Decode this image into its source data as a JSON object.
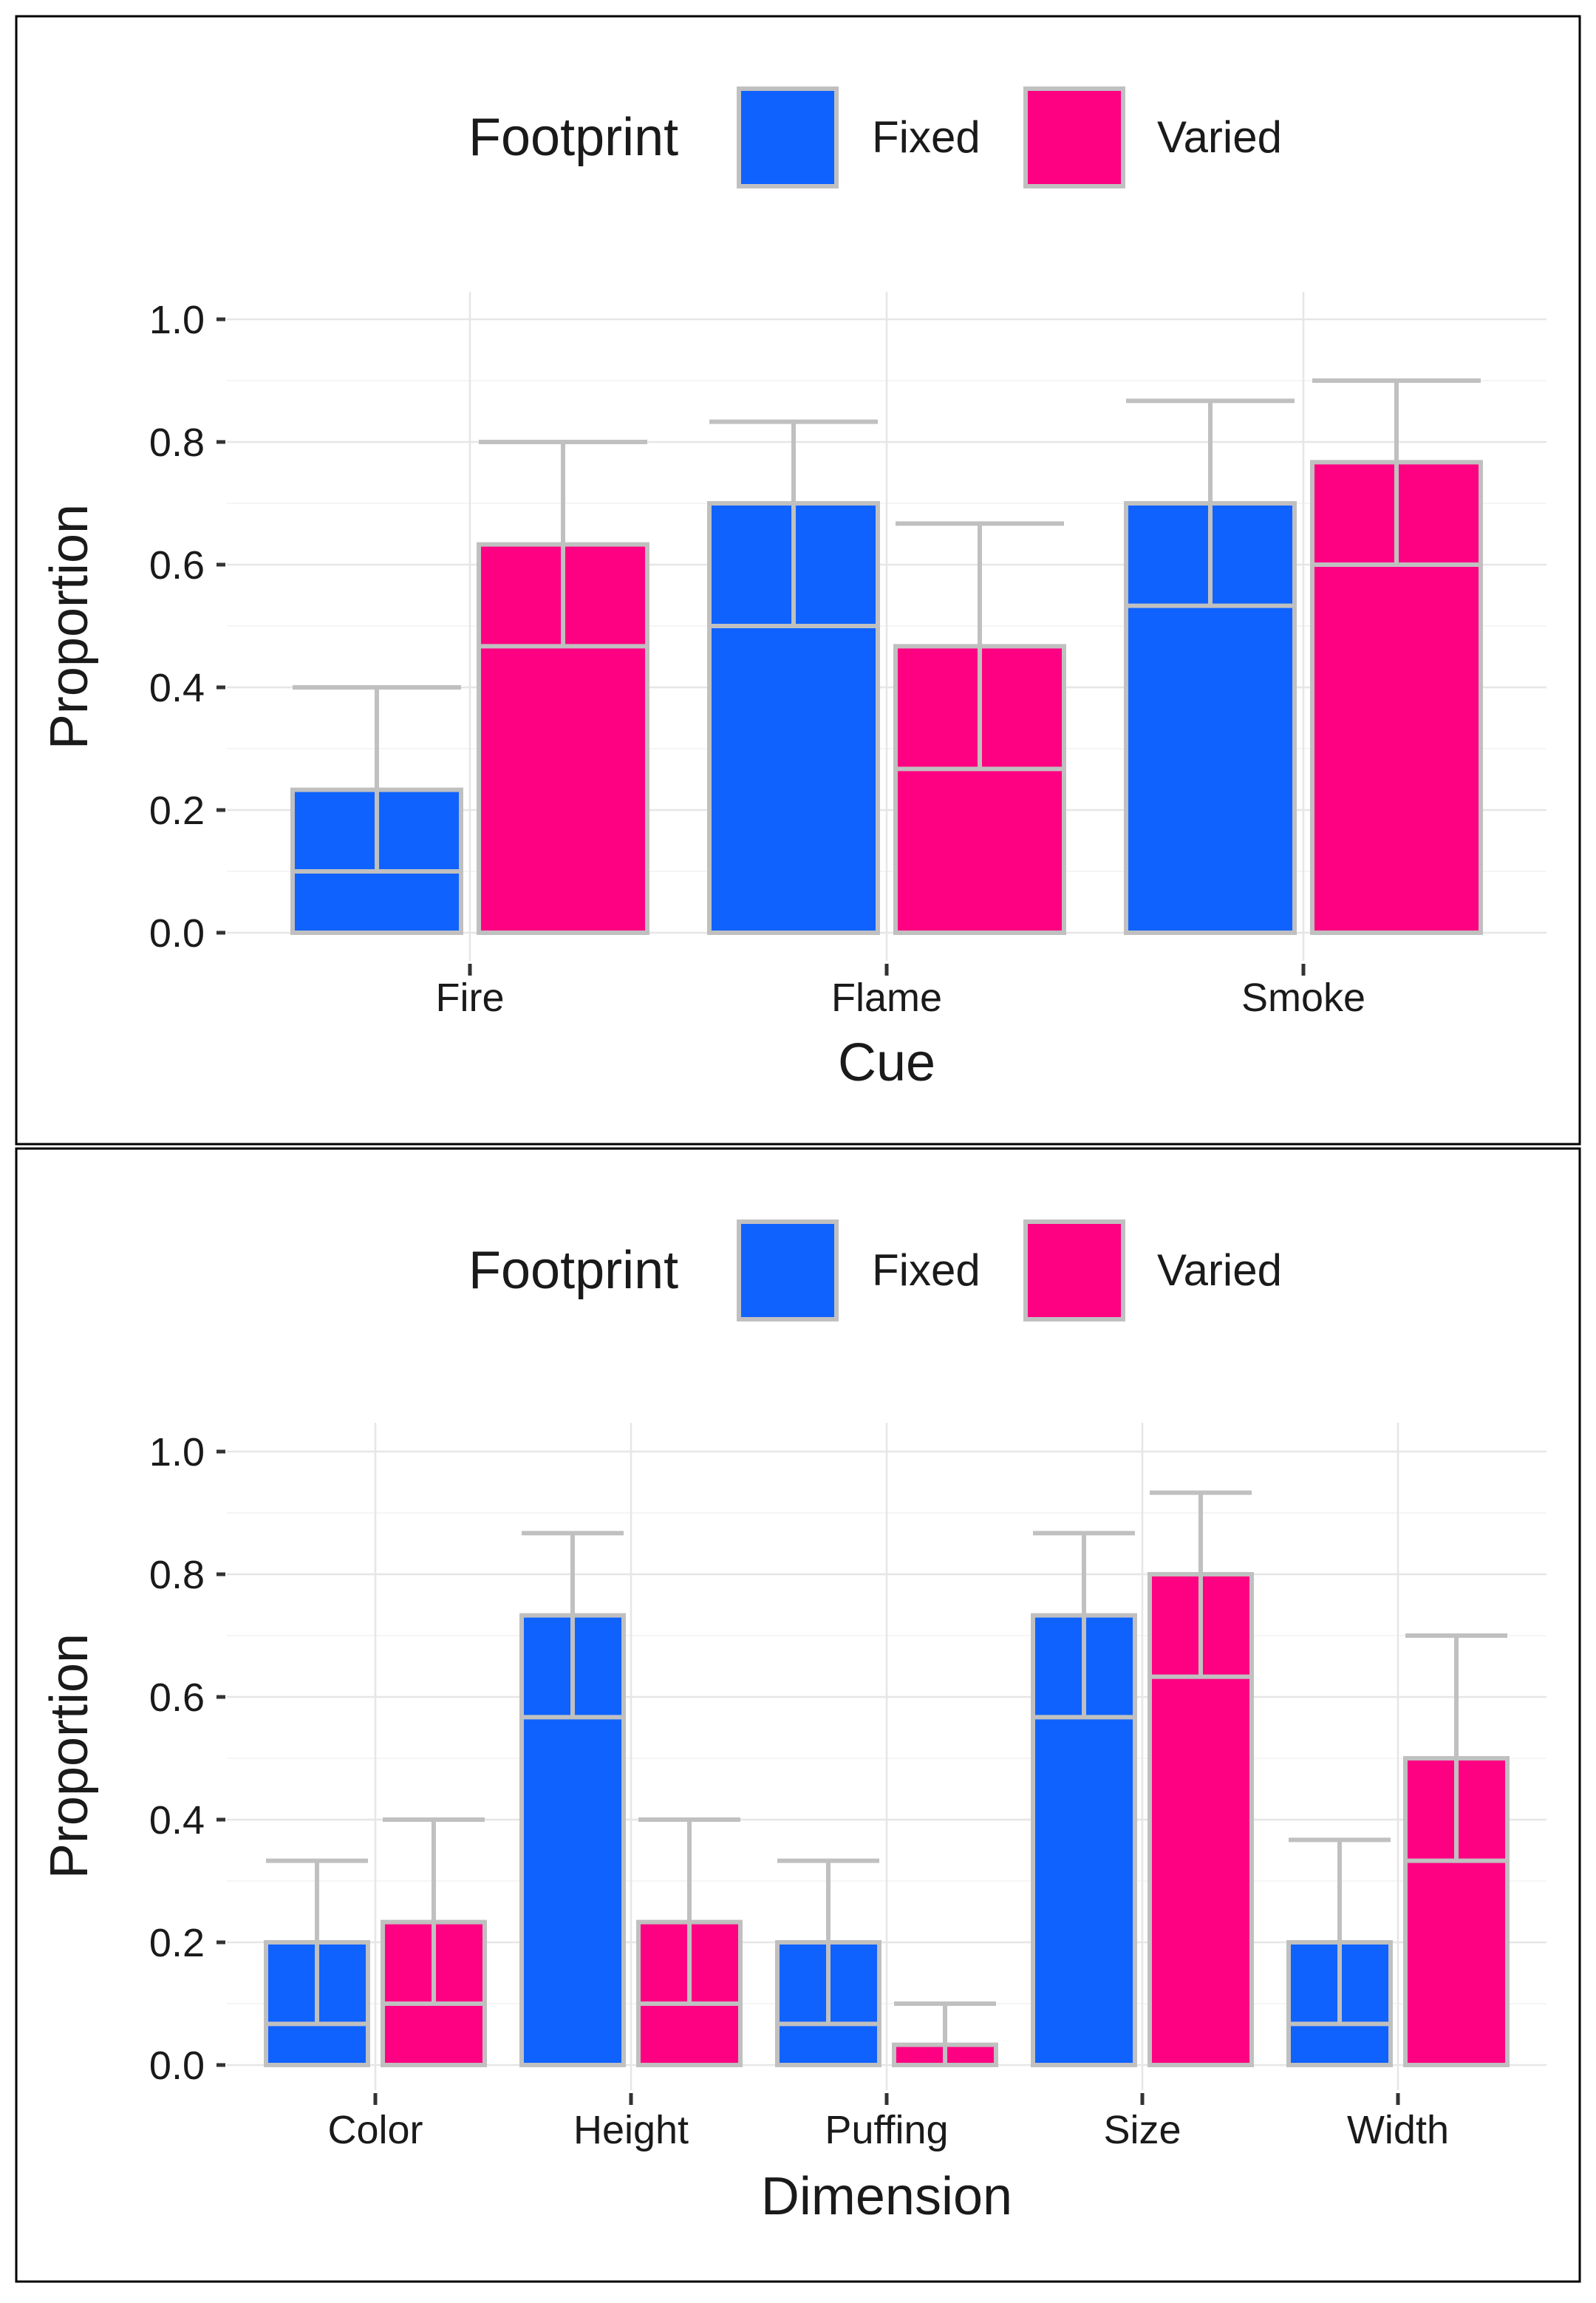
{
  "colors": {
    "fixed": "#0f62fe",
    "varied": "#fd0182",
    "outline": "#c0c0c0",
    "grid": "#e6e6e6",
    "axis": "#333333",
    "text": "#1a1a1a"
  },
  "chart_data": [
    {
      "type": "bar",
      "title": "",
      "xlabel": "Cue",
      "ylabel": "Proportion",
      "ylim": [
        0,
        1.0
      ],
      "yticks": [
        0.0,
        0.2,
        0.4,
        0.6,
        0.8,
        1.0
      ],
      "ytick_labels": [
        "0.0",
        "0.2",
        "0.4",
        "0.6",
        "0.8",
        "1.0"
      ],
      "grid": true,
      "legend": {
        "title": "Footprint",
        "position": "top",
        "entries": [
          "Fixed",
          "Varied"
        ]
      },
      "categories": [
        "Fire",
        "Flame",
        "Smoke"
      ],
      "series": [
        {
          "name": "Fixed",
          "values": [
            0.233,
            0.7,
            0.7
          ],
          "ci_low": [
            0.1,
            0.5,
            0.533
          ],
          "ci_high": [
            0.4,
            0.833,
            0.867
          ]
        },
        {
          "name": "Varied",
          "values": [
            0.633,
            0.467,
            0.767
          ],
          "ci_low": [
            0.467,
            0.267,
            0.6
          ],
          "ci_high": [
            0.8,
            0.667,
            0.9
          ]
        }
      ]
    },
    {
      "type": "bar",
      "title": "",
      "xlabel": "Dimension",
      "ylabel": "Proportion",
      "ylim": [
        0,
        1.0
      ],
      "yticks": [
        0.0,
        0.2,
        0.4,
        0.6,
        0.8,
        1.0
      ],
      "ytick_labels": [
        "0.0",
        "0.2",
        "0.4",
        "0.6",
        "0.8",
        "1.0"
      ],
      "grid": true,
      "legend": {
        "title": "Footprint",
        "position": "top",
        "entries": [
          "Fixed",
          "Varied"
        ]
      },
      "categories": [
        "Color",
        "Height",
        "Puffing",
        "Size",
        "Width"
      ],
      "series": [
        {
          "name": "Fixed",
          "values": [
            0.2,
            0.733,
            0.2,
            0.733,
            0.2
          ],
          "ci_low": [
            0.067,
            0.567,
            0.067,
            0.567,
            0.067
          ],
          "ci_high": [
            0.333,
            0.867,
            0.333,
            0.867,
            0.367
          ]
        },
        {
          "name": "Varied",
          "values": [
            0.233,
            0.233,
            0.033,
            0.8,
            0.5
          ],
          "ci_low": [
            0.1,
            0.1,
            0.0,
            0.633,
            0.333
          ],
          "ci_high": [
            0.4,
            0.4,
            0.1,
            0.933,
            0.7
          ]
        }
      ]
    }
  ]
}
